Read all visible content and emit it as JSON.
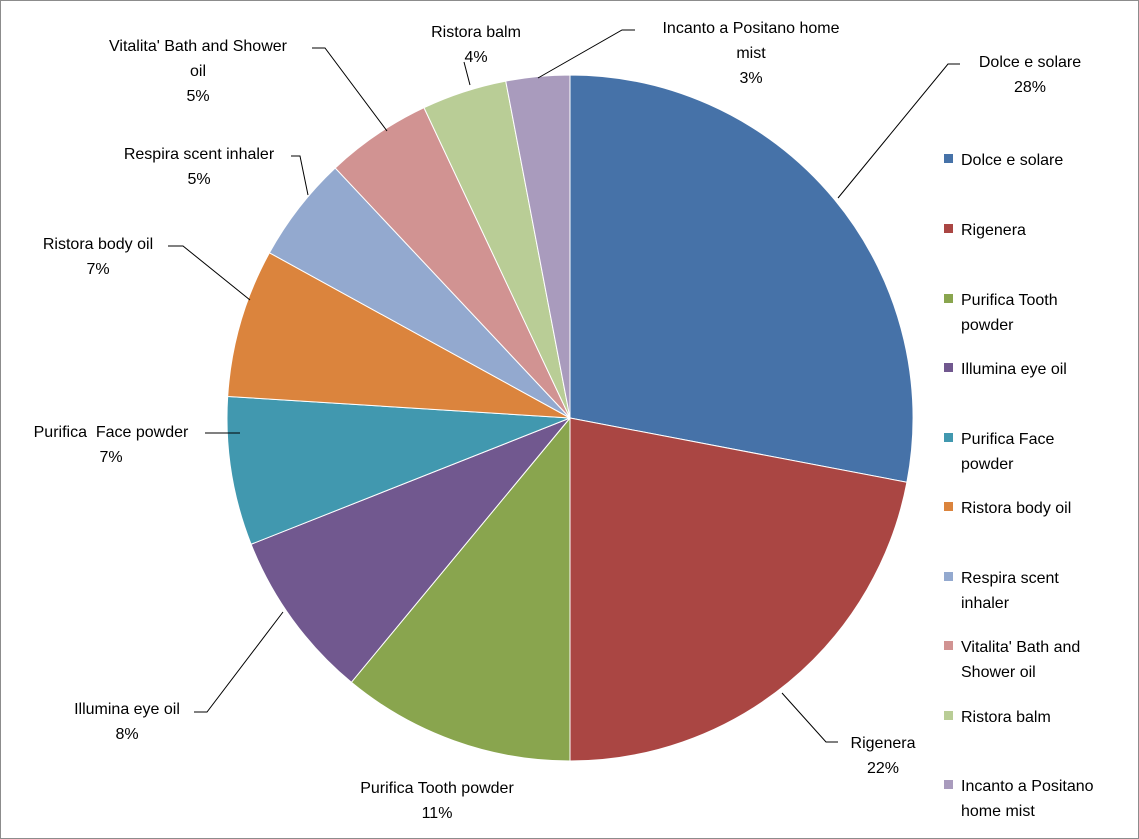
{
  "chart_data": {
    "type": "pie",
    "title": "",
    "slices": [
      {
        "label": [
          "Dolce e solare"
        ],
        "legend": [
          "Dolce e solare"
        ],
        "value": 28,
        "pct": "28%",
        "color": "#4672A8"
      },
      {
        "label": [
          "Rigenera"
        ],
        "legend": [
          "Rigenera"
        ],
        "value": 22,
        "pct": "22%",
        "color": "#AA4643"
      },
      {
        "label": [
          "Purifica Tooth powder"
        ],
        "legend": [
          "Purifica Tooth",
          "powder"
        ],
        "value": 11,
        "pct": "11%",
        "color": "#89A54E"
      },
      {
        "label": [
          "Illumina eye oil"
        ],
        "legend": [
          "Illumina eye oil"
        ],
        "value": 8,
        "pct": "8%",
        "color": "#71588F"
      },
      {
        "label": [
          "Purifica  Face powder"
        ],
        "legend": [
          "Purifica Face",
          "powder"
        ],
        "value": 7,
        "pct": "7%",
        "color": "#4198AF"
      },
      {
        "label": [
          "Ristora body oil"
        ],
        "legend": [
          "Ristora body oil"
        ],
        "value": 7,
        "pct": "7%",
        "color": "#DB843D"
      },
      {
        "label": [
          "Respira scent inhaler"
        ],
        "legend": [
          "Respira scent",
          "inhaler"
        ],
        "value": 5,
        "pct": "5%",
        "color": "#93A9CF"
      },
      {
        "label": [
          "Vitalita' Bath and Shower",
          "oil"
        ],
        "legend": [
          "Vitalita' Bath and",
          "Shower oil"
        ],
        "value": 5,
        "pct": "5%",
        "color": "#D19392"
      },
      {
        "label": [
          "Ristora balm"
        ],
        "legend": [
          "Ristora balm"
        ],
        "value": 4,
        "pct": "4%",
        "color": "#B9CD96"
      },
      {
        "label": [
          "Incanto a Positano home",
          "mist"
        ],
        "legend": [
          "Incanto a Positano",
          "home mist"
        ],
        "value": 3,
        "pct": "3%",
        "color": "#A99BBD"
      }
    ],
    "legend_position": "right"
  }
}
